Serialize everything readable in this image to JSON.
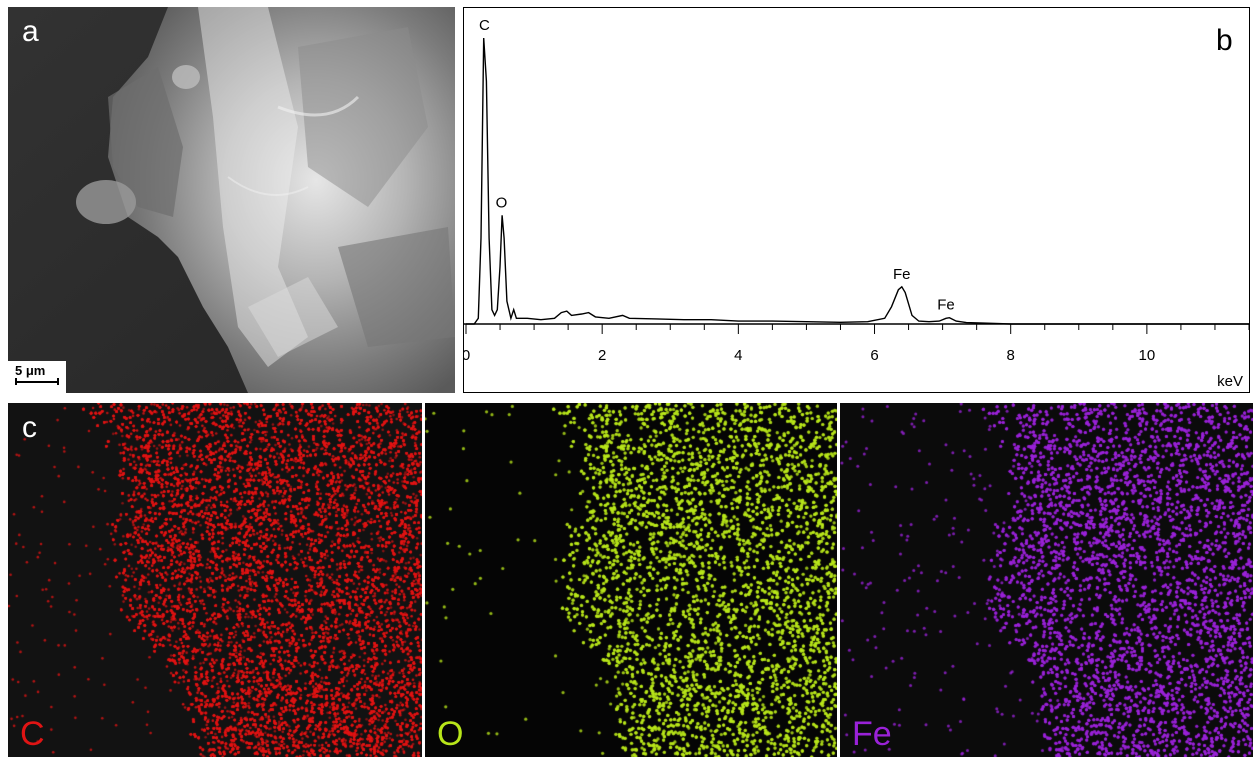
{
  "panel_a": {
    "letter": "a",
    "scale_bar_label": "5 μm"
  },
  "panel_b": {
    "letter": "b",
    "chart_data": {
      "type": "line",
      "title": "",
      "xlabel": "keV",
      "ylabel": "",
      "xlim": [
        0,
        11.5
      ],
      "x_ticks": [
        0,
        2,
        4,
        6,
        8,
        10
      ],
      "x_tick_labels": [
        "0",
        "2",
        "4",
        "6",
        "8",
        "10"
      ],
      "grid": false,
      "series": [
        {
          "points": [
            [
              0.0,
              0.0
            ],
            [
              0.12,
              0.0
            ],
            [
              0.18,
              0.02
            ],
            [
              0.22,
              0.3
            ],
            [
              0.26,
              1.0
            ],
            [
              0.3,
              0.85
            ],
            [
              0.34,
              0.3
            ],
            [
              0.38,
              0.05
            ],
            [
              0.42,
              0.03
            ],
            [
              0.46,
              0.05
            ],
            [
              0.5,
              0.2
            ],
            [
              0.53,
              0.38
            ],
            [
              0.56,
              0.3
            ],
            [
              0.6,
              0.08
            ],
            [
              0.66,
              0.02
            ],
            [
              0.7,
              0.05
            ],
            [
              0.74,
              0.02
            ],
            [
              0.9,
              0.02
            ],
            [
              1.1,
              0.015
            ],
            [
              1.3,
              0.02
            ],
            [
              1.4,
              0.04
            ],
            [
              1.48,
              0.045
            ],
            [
              1.55,
              0.03
            ],
            [
              1.7,
              0.035
            ],
            [
              1.8,
              0.04
            ],
            [
              1.9,
              0.025
            ],
            [
              2.1,
              0.02
            ],
            [
              2.3,
              0.03
            ],
            [
              2.4,
              0.02
            ],
            [
              2.8,
              0.018
            ],
            [
              3.2,
              0.015
            ],
            [
              3.6,
              0.015
            ],
            [
              4.0,
              0.01
            ],
            [
              4.5,
              0.01
            ],
            [
              5.0,
              0.008
            ],
            [
              5.5,
              0.006
            ],
            [
              5.9,
              0.008
            ],
            [
              6.15,
              0.02
            ],
            [
              6.25,
              0.06
            ],
            [
              6.35,
              0.12
            ],
            [
              6.4,
              0.13
            ],
            [
              6.45,
              0.11
            ],
            [
              6.55,
              0.03
            ],
            [
              6.65,
              0.01
            ],
            [
              6.8,
              0.008
            ],
            [
              6.95,
              0.01
            ],
            [
              7.05,
              0.02
            ],
            [
              7.1,
              0.022
            ],
            [
              7.2,
              0.01
            ],
            [
              7.35,
              0.005
            ],
            [
              7.6,
              0.003
            ],
            [
              8.0,
              0.0
            ],
            [
              11.5,
              0.0
            ]
          ]
        }
      ],
      "annotations": [
        {
          "text": "C",
          "x": 0.27,
          "y": 1.0
        },
        {
          "text": "O",
          "x": 0.52,
          "y": 0.38
        },
        {
          "text": "Fe",
          "x": 6.4,
          "y": 0.13
        },
        {
          "text": "Fe",
          "x": 7.05,
          "y": 0.022
        }
      ]
    }
  },
  "panel_c": {
    "letter": "c",
    "maps": [
      {
        "label": "C",
        "color": "#e01414"
      },
      {
        "label": "O",
        "color": "#b8e61a"
      },
      {
        "label": "Fe",
        "color": "#9a22d8"
      }
    ]
  }
}
